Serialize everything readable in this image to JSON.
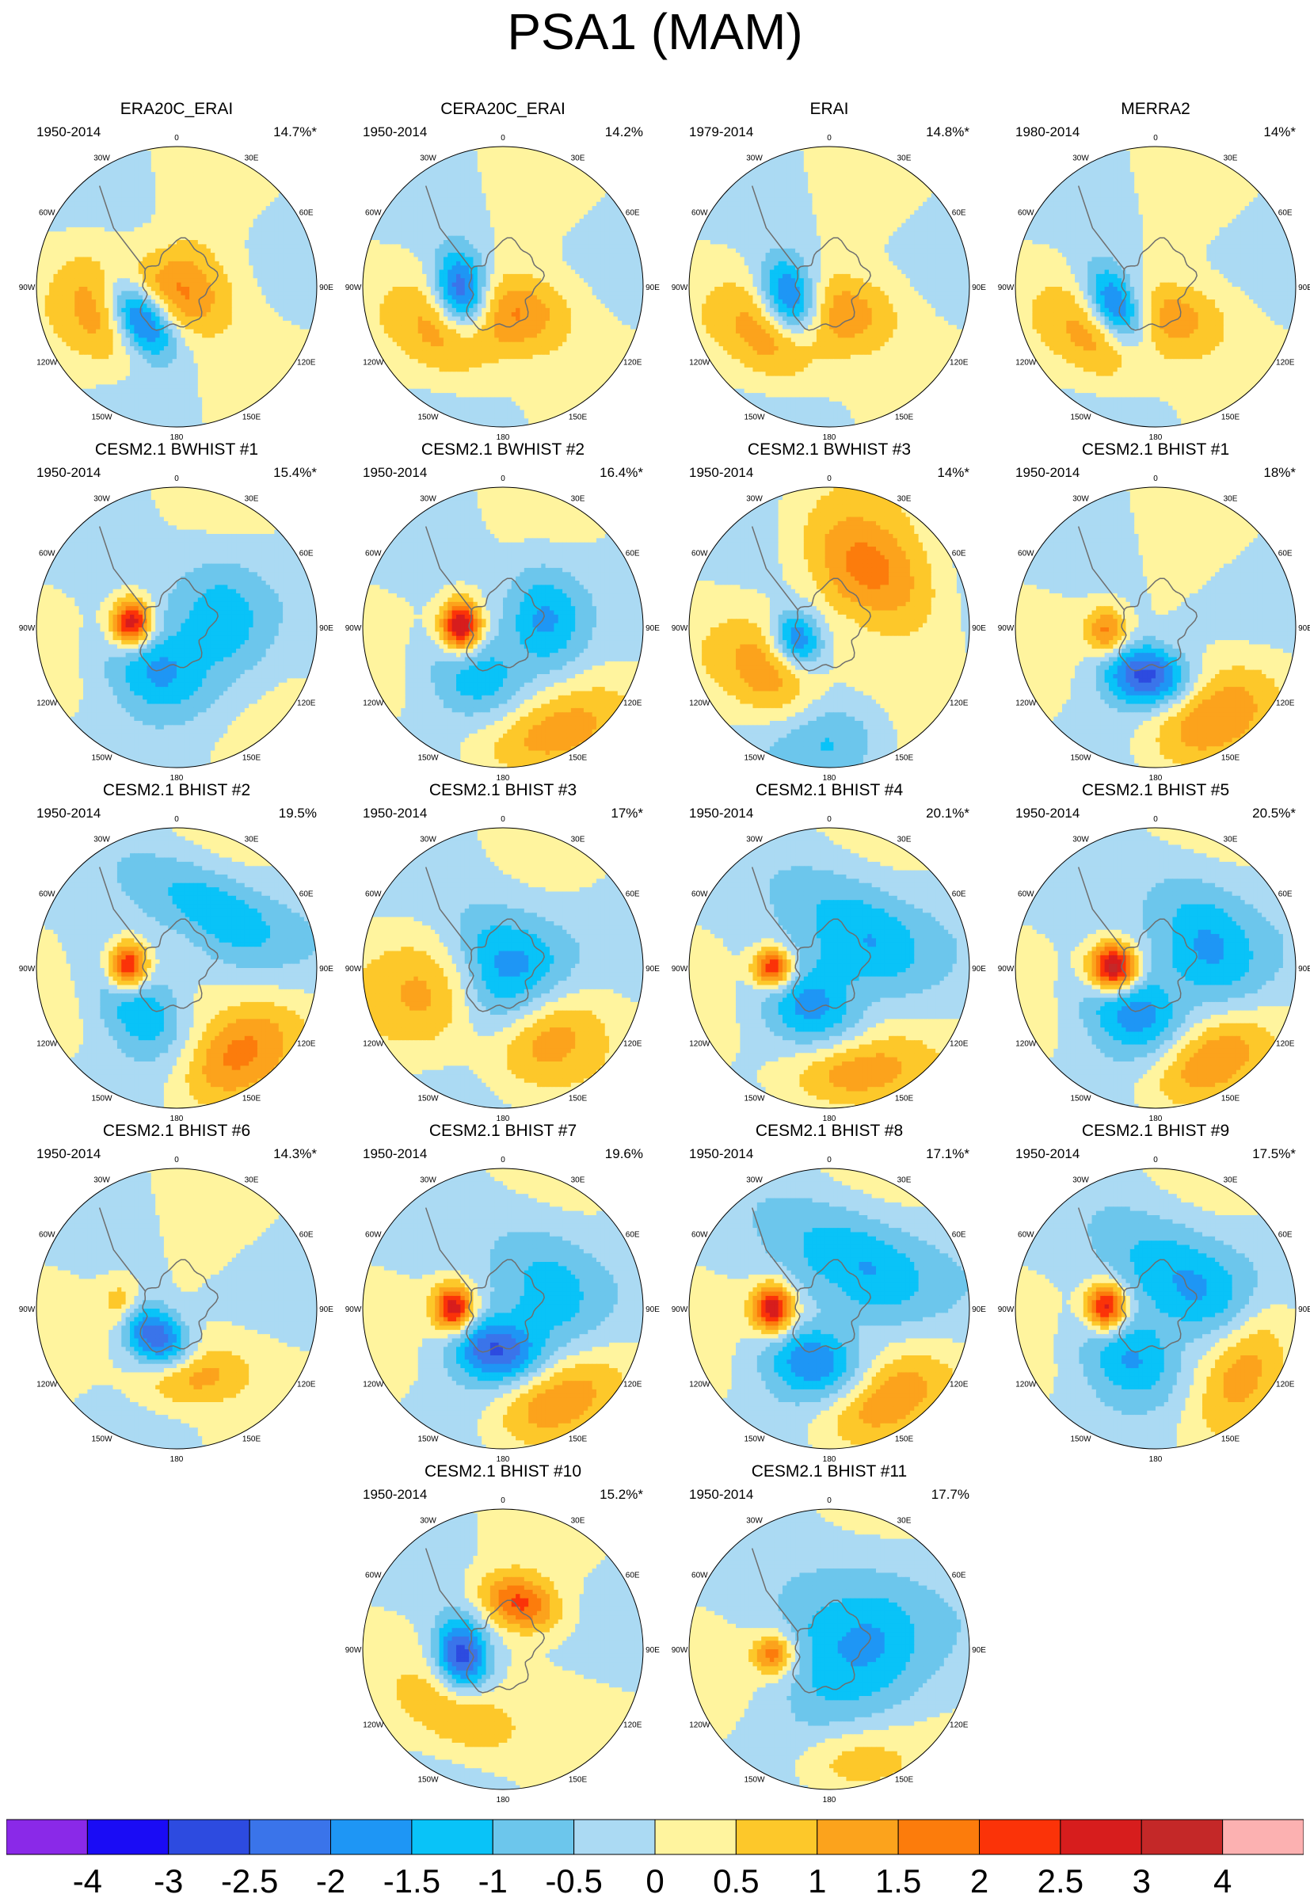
{
  "title": "PSA1 (MAM)",
  "map_labels": {
    "north": "0",
    "n30e": "30E",
    "n60e": "60E",
    "e90": "90E",
    "e120": "120E",
    "s150e": "150E",
    "south": "180",
    "s150w": "150W",
    "w120": "120W",
    "w90": "90W",
    "n60w": "60W",
    "n30w": "30W"
  },
  "panels": [
    {
      "title": "ERA20C_ERAI",
      "period": "1950-2014",
      "variance": "14.7%*",
      "lows": [
        {
          "lon": -127,
          "r": 0.34,
          "amp": -3.2,
          "sx": 0.22,
          "sy": 0.13
        }
      ],
      "highs": [
        {
          "lon": 178,
          "r": 0.04,
          "amp": 1.6,
          "sx": 0.28,
          "sy": 0.22
        },
        {
          "lon": -105,
          "r": 0.55,
          "amp": 1.2,
          "sx": 0.3,
          "sy": 0.2
        }
      ]
    },
    {
      "title": "CERA20C_ERAI",
      "period": "1950-2014",
      "variance": "14.2%",
      "lows": [
        {
          "lon": -100,
          "r": 0.3,
          "amp": -3.0,
          "sx": 0.2,
          "sy": 0.13
        }
      ],
      "highs": [
        {
          "lon": 170,
          "r": 0.2,
          "amp": 1.5,
          "sx": 0.3,
          "sy": 0.2
        },
        {
          "lon": -130,
          "r": 0.55,
          "amp": 1.0,
          "sx": 0.3,
          "sy": 0.2
        }
      ]
    },
    {
      "title": "ERAI",
      "period": "1979-2014",
      "variance": "14.8%*",
      "lows": [
        {
          "lon": -110,
          "r": 0.3,
          "amp": -3.0,
          "sx": 0.2,
          "sy": 0.14
        }
      ],
      "highs": [
        {
          "lon": 170,
          "r": 0.2,
          "amp": 1.4,
          "sx": 0.3,
          "sy": 0.2
        },
        {
          "lon": -130,
          "r": 0.55,
          "amp": 1.2,
          "sx": 0.3,
          "sy": 0.2
        }
      ]
    },
    {
      "title": "MERRA2",
      "period": "1980-2014",
      "variance": "14%*",
      "lows": [
        {
          "lon": -120,
          "r": 0.32,
          "amp": -3.0,
          "sx": 0.22,
          "sy": 0.13
        }
      ],
      "highs": [
        {
          "lon": 170,
          "r": 0.25,
          "amp": 1.3,
          "sx": 0.3,
          "sy": 0.2
        },
        {
          "lon": -130,
          "r": 0.55,
          "amp": 1.1,
          "sx": 0.3,
          "sy": 0.2
        }
      ]
    },
    {
      "title": "CESM2.1 BWHIST #1",
      "period": "1950-2014",
      "variance": "15.4%*",
      "lows": [
        {
          "lon": 80,
          "r": 0.3,
          "amp": -1.3,
          "sx": 0.35,
          "sy": 0.25
        },
        {
          "lon": -150,
          "r": 0.35,
          "amp": -1.4,
          "sx": 0.3,
          "sy": 0.2
        }
      ],
      "highs": [
        {
          "lon": -85,
          "r": 0.32,
          "amp": 3.2,
          "sx": 0.12,
          "sy": 0.1
        }
      ]
    },
    {
      "title": "CESM2.1 BWHIST #2",
      "period": "1950-2014",
      "variance": "16.4%*",
      "lows": [
        {
          "lon": 80,
          "r": 0.3,
          "amp": -1.5,
          "sx": 0.3,
          "sy": 0.2
        },
        {
          "lon": -150,
          "r": 0.4,
          "amp": -1.2,
          "sx": 0.3,
          "sy": 0.2
        }
      ],
      "highs": [
        {
          "lon": -88,
          "r": 0.3,
          "amp": 3.3,
          "sx": 0.13,
          "sy": 0.1
        },
        {
          "lon": 160,
          "r": 0.8,
          "amp": 1.2,
          "sx": 0.4,
          "sy": 0.2
        }
      ]
    },
    {
      "title": "CESM2.1 BWHIST #3",
      "period": "1950-2014",
      "variance": "14%*",
      "lows": [
        {
          "lon": -110,
          "r": 0.25,
          "amp": -2.2,
          "sx": 0.14,
          "sy": 0.12
        },
        {
          "lon": 180,
          "r": 0.8,
          "amp": -1.0,
          "sx": 0.3,
          "sy": 0.2
        }
      ],
      "highs": [
        {
          "lon": 40,
          "r": 0.5,
          "amp": 1.6,
          "sx": 0.4,
          "sy": 0.25
        },
        {
          "lon": -130,
          "r": 0.55,
          "amp": 1.3,
          "sx": 0.3,
          "sy": 0.2
        }
      ]
    },
    {
      "title": "CESM2.1 BHIST #1",
      "period": "1950-2014",
      "variance": "18%*",
      "lows": [
        {
          "lon": -170,
          "r": 0.35,
          "amp": -2.6,
          "sx": 0.22,
          "sy": 0.15
        }
      ],
      "highs": [
        {
          "lon": -95,
          "r": 0.35,
          "amp": 1.6,
          "sx": 0.12,
          "sy": 0.1
        },
        {
          "lon": 150,
          "r": 0.75,
          "amp": 1.3,
          "sx": 0.35,
          "sy": 0.2
        }
      ]
    },
    {
      "title": "CESM2.1 BHIST #2",
      "period": "1950-2014",
      "variance": "19.5%",
      "lows": [
        {
          "lon": 30,
          "r": 0.5,
          "amp": -1.5,
          "sx": 0.4,
          "sy": 0.2
        },
        {
          "lon": -130,
          "r": 0.4,
          "amp": -1.4,
          "sx": 0.3,
          "sy": 0.18
        }
      ],
      "highs": [
        {
          "lon": -88,
          "r": 0.35,
          "amp": 3.0,
          "sx": 0.12,
          "sy": 0.1
        },
        {
          "lon": 145,
          "r": 0.75,
          "amp": 1.4,
          "sx": 0.35,
          "sy": 0.2
        }
      ]
    },
    {
      "title": "CESM2.1 BHIST #3",
      "period": "1950-2014",
      "variance": "17%*",
      "lows": [
        {
          "lon": 0,
          "r": 0.0,
          "amp": -1.9,
          "sx": 0.3,
          "sy": 0.3
        }
      ],
      "highs": [
        {
          "lon": -110,
          "r": 0.5,
          "amp": 1.2,
          "sx": 0.3,
          "sy": 0.3
        },
        {
          "lon": 150,
          "r": 0.6,
          "amp": 1.2,
          "sx": 0.3,
          "sy": 0.2
        }
      ]
    },
    {
      "title": "CESM2.1 BHIST #4",
      "period": "1950-2014",
      "variance": "20.1%*",
      "lows": [
        {
          "lon": 40,
          "r": 0.35,
          "amp": -1.5,
          "sx": 0.4,
          "sy": 0.25
        },
        {
          "lon": -150,
          "r": 0.3,
          "amp": -1.6,
          "sx": 0.3,
          "sy": 0.2
        }
      ],
      "highs": [
        {
          "lon": -90,
          "r": 0.4,
          "amp": 3.0,
          "sx": 0.1,
          "sy": 0.1
        },
        {
          "lon": 170,
          "r": 0.75,
          "amp": 1.4,
          "sx": 0.35,
          "sy": 0.18
        }
      ]
    },
    {
      "title": "CESM2.1 BHIST #5",
      "period": "1950-2014",
      "variance": "20.5%*",
      "lows": [
        {
          "lon": 60,
          "r": 0.4,
          "amp": -1.5,
          "sx": 0.4,
          "sy": 0.25
        },
        {
          "lon": -150,
          "r": 0.35,
          "amp": -1.7,
          "sx": 0.3,
          "sy": 0.2
        }
      ],
      "highs": [
        {
          "lon": -90,
          "r": 0.3,
          "amp": 3.8,
          "sx": 0.12,
          "sy": 0.12
        },
        {
          "lon": 150,
          "r": 0.75,
          "amp": 1.4,
          "sx": 0.35,
          "sy": 0.18
        }
      ]
    },
    {
      "title": "CESM2.1 BHIST #6",
      "period": "1950-2014",
      "variance": "14.3%*",
      "lows": [
        {
          "lon": -140,
          "r": 0.25,
          "amp": -2.4,
          "sx": 0.2,
          "sy": 0.13
        }
      ],
      "highs": [
        {
          "lon": -85,
          "r": 0.4,
          "amp": 1.1,
          "sx": 0.12,
          "sy": 0.1
        },
        {
          "lon": 170,
          "r": 0.5,
          "amp": 1.3,
          "sx": 0.25,
          "sy": 0.14
        }
      ]
    },
    {
      "title": "CESM2.1 BHIST #7",
      "period": "1950-2014",
      "variance": "19.6%",
      "lows": [
        {
          "lon": 60,
          "r": 0.35,
          "amp": -1.2,
          "sx": 0.4,
          "sy": 0.25
        },
        {
          "lon": -170,
          "r": 0.3,
          "amp": -2.4,
          "sx": 0.24,
          "sy": 0.16
        }
      ],
      "highs": [
        {
          "lon": -90,
          "r": 0.35,
          "amp": 3.0,
          "sx": 0.12,
          "sy": 0.1
        },
        {
          "lon": 150,
          "r": 0.75,
          "amp": 1.3,
          "sx": 0.35,
          "sy": 0.18
        }
      ]
    },
    {
      "title": "CESM2.1 BHIST #8",
      "period": "1950-2014",
      "variance": "17.1%*",
      "lows": [
        {
          "lon": 30,
          "r": 0.4,
          "amp": -1.6,
          "sx": 0.4,
          "sy": 0.25
        },
        {
          "lon": -165,
          "r": 0.4,
          "amp": -1.8,
          "sx": 0.28,
          "sy": 0.18
        }
      ],
      "highs": [
        {
          "lon": -90,
          "r": 0.4,
          "amp": 3.0,
          "sx": 0.12,
          "sy": 0.1
        },
        {
          "lon": 150,
          "r": 0.75,
          "amp": 1.3,
          "sx": 0.35,
          "sy": 0.18
        }
      ]
    },
    {
      "title": "CESM2.1 BHIST #9",
      "period": "1950-2014",
      "variance": "17.5%*",
      "lows": [
        {
          "lon": 40,
          "r": 0.3,
          "amp": -1.6,
          "sx": 0.4,
          "sy": 0.25
        },
        {
          "lon": -150,
          "r": 0.4,
          "amp": -1.4,
          "sx": 0.3,
          "sy": 0.2
        }
      ],
      "highs": [
        {
          "lon": -88,
          "r": 0.35,
          "amp": 3.0,
          "sx": 0.12,
          "sy": 0.1
        },
        {
          "lon": 120,
          "r": 0.75,
          "amp": 1.2,
          "sx": 0.35,
          "sy": 0.18
        }
      ]
    },
    {
      "title": "CESM2.1 BHIST #10",
      "period": "1950-2014",
      "variance": "15.2%*",
      "lows": [
        {
          "lon": -100,
          "r": 0.3,
          "amp": -3.0,
          "sx": 0.18,
          "sy": 0.13
        }
      ],
      "highs": [
        {
          "lon": 20,
          "r": 0.35,
          "amp": 2.0,
          "sx": 0.2,
          "sy": 0.13
        },
        {
          "lon": -150,
          "r": 0.55,
          "amp": 1.2,
          "sx": 0.3,
          "sy": 0.2
        }
      ]
    },
    {
      "title": "CESM2.1 BHIST #11",
      "period": "1950-2014",
      "variance": "17.7%",
      "lows": [
        {
          "lon": 90,
          "r": 0.2,
          "amp": -1.6,
          "sx": 0.45,
          "sy": 0.35
        }
      ],
      "highs": [
        {
          "lon": -95,
          "r": 0.4,
          "amp": 1.9,
          "sx": 0.1,
          "sy": 0.1
        },
        {
          "lon": 170,
          "r": 0.8,
          "amp": 1.0,
          "sx": 0.3,
          "sy": 0.18
        }
      ]
    }
  ],
  "colorbar": {
    "levels": [
      "-4",
      "-3",
      "-2.5",
      "-2",
      "-1.5",
      "-1",
      "-0.5",
      "0",
      "0.5",
      "1",
      "1.5",
      "2",
      "2.5",
      "3",
      "4"
    ],
    "bounds": [
      -4,
      -3,
      -2.5,
      -2,
      -1.5,
      -1,
      -0.5,
      0,
      0.5,
      1,
      1.5,
      2,
      2.5,
      3,
      4
    ],
    "colors": [
      "#8a29e8",
      "#1a0cf5",
      "#2d4be0",
      "#3a74ea",
      "#1e96f5",
      "#09c3f8",
      "#6cc6ec",
      "#abdaf3",
      "#fff49e",
      "#fdc82a",
      "#fca31c",
      "#fc7c0c",
      "#fb3308",
      "#d71d1d",
      "#c42828",
      "#fcb1b1"
    ]
  }
}
